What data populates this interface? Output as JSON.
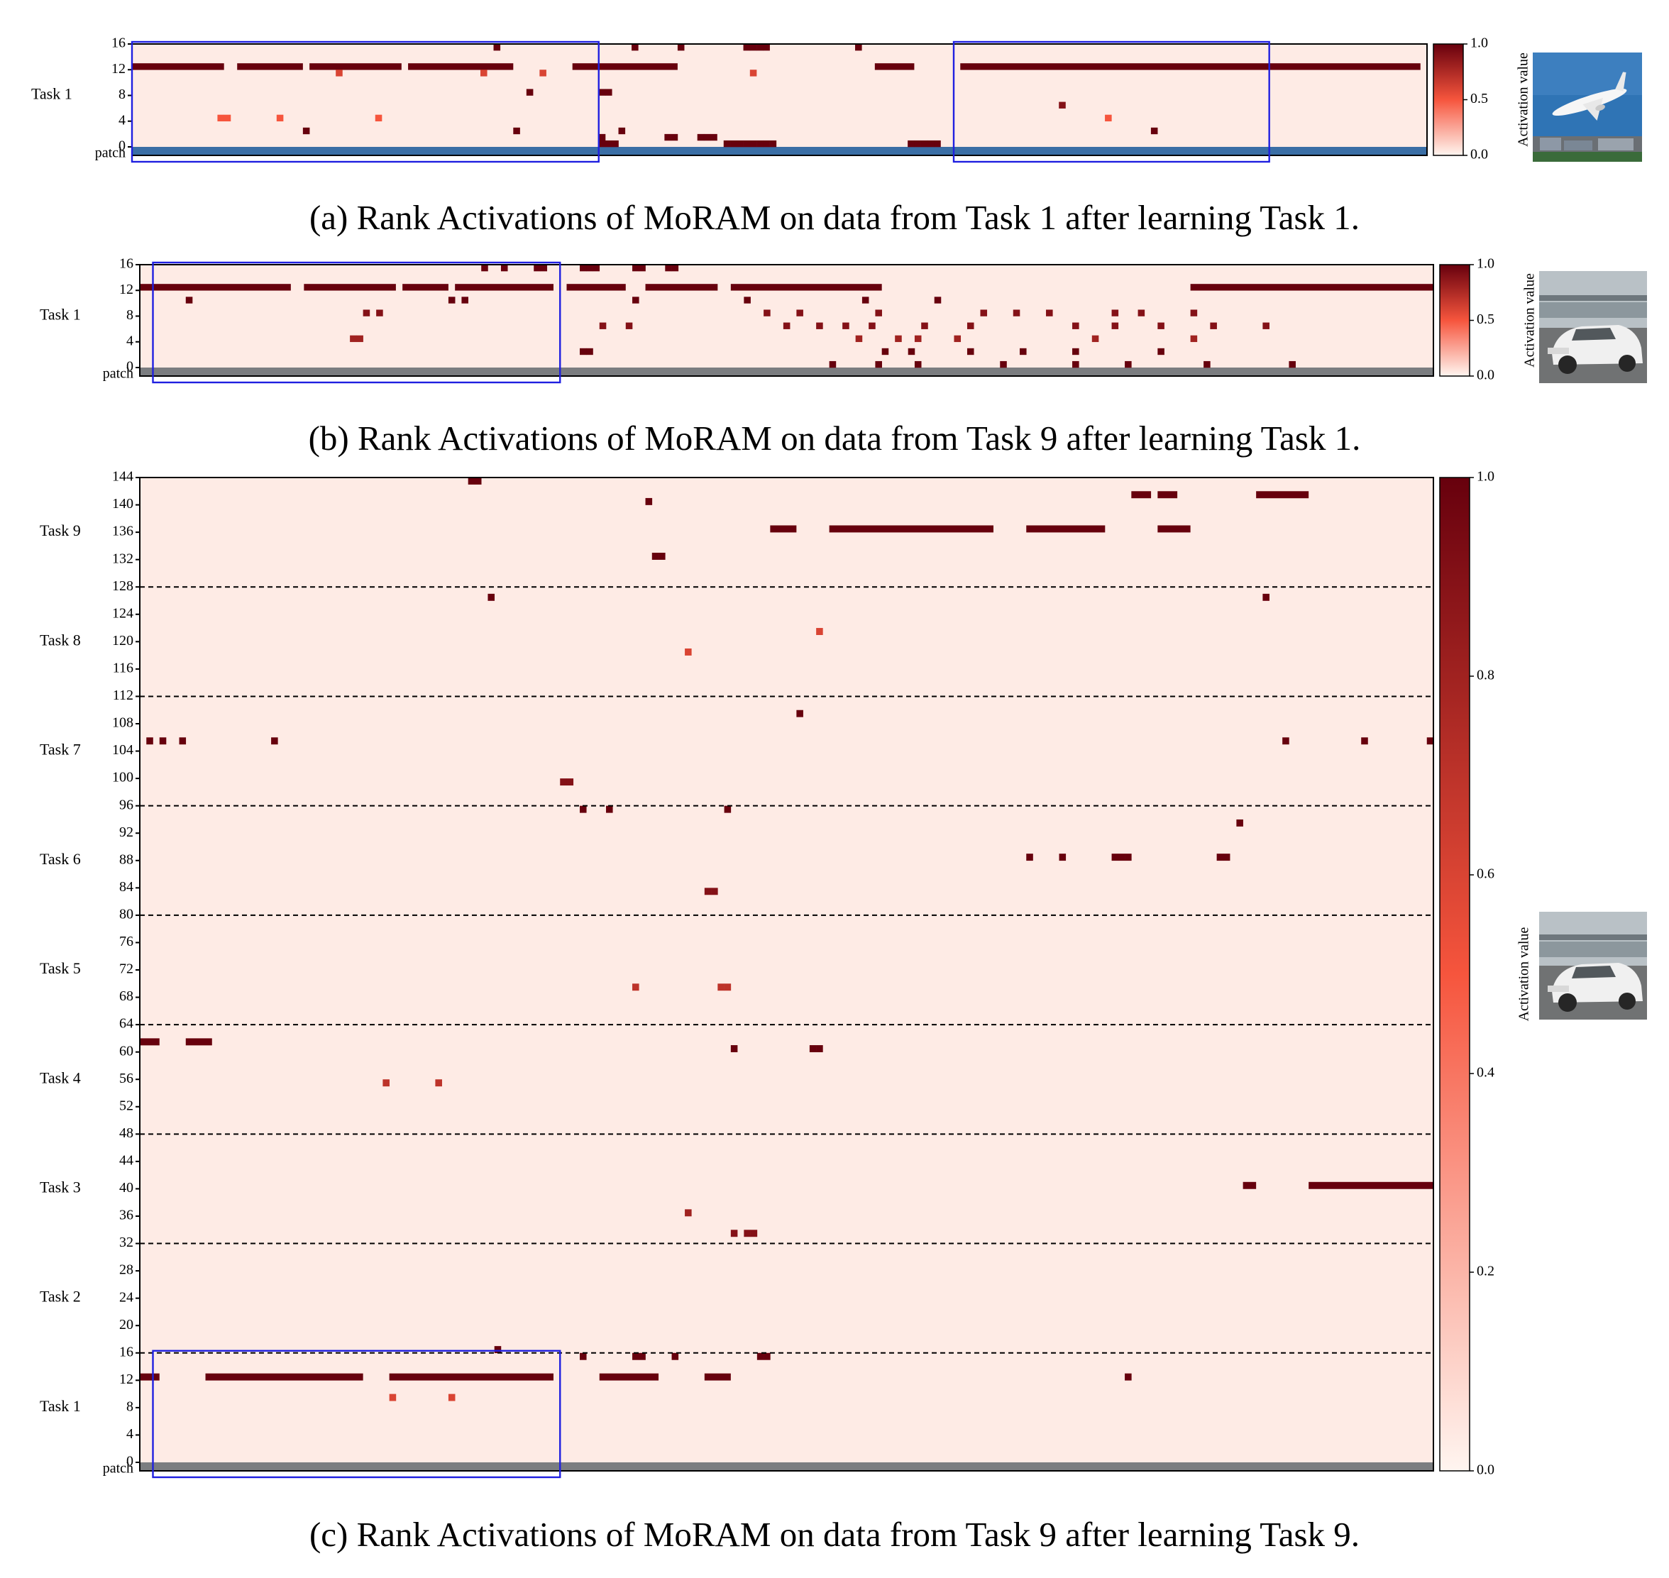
{
  "colors": {
    "cmap_low": "#fff5f0",
    "cmap_mid": "#f6553d",
    "cmap_high": "#67000d",
    "highlight_box": "#1f1fe0",
    "separator": "#000000"
  },
  "icons": {
    "panel_a_image": "airplane-photo",
    "panel_b_image": "white-car-photo",
    "panel_c_image": "white-car-photo"
  },
  "captions": {
    "a": "(a) Rank Activations of MoRAM on data from Task 1 after learning Task 1.",
    "b": "(b) Rank Activations of MoRAM on data from Task 9 after learning Task 1.",
    "c": "(c) Rank Activations of MoRAM on data from Task 9 after learning Task 9."
  },
  "colorbar": {
    "label": "Activation value",
    "ticks_small": [
      "1.0",
      "0.5",
      "0.0"
    ],
    "ticks_large": [
      "1.0",
      "0.8",
      "0.6",
      "0.4",
      "0.2",
      "0.0"
    ]
  },
  "chart_data": [
    {
      "type": "heatmap",
      "panel": "a",
      "title": "",
      "ylabel_groups": [
        "Task 1"
      ],
      "bottom_row_label": "patch",
      "yticks": [
        "16",
        "12",
        "8",
        "4",
        "0"
      ],
      "ylim": [
        0,
        16
      ],
      "n_patches": 197,
      "zlim": [
        0.0,
        1.0
      ],
      "strong_bands": [
        {
          "row": 12,
          "x": [
            [
              0,
              13
            ],
            [
              16,
              25
            ],
            [
              27,
              40
            ],
            [
              42,
              57
            ],
            [
              67,
              82
            ],
            [
              113,
              118
            ],
            [
              126,
              195
            ]
          ],
          "value": 1.0
        }
      ],
      "scattered": [
        {
          "row": 15,
          "x": [
            55,
            76,
            83,
            93,
            94,
            95,
            96,
            110
          ],
          "value": 1.0
        },
        {
          "row": 11,
          "x": [
            31,
            53,
            62,
            94
          ],
          "value": 0.6
        },
        {
          "row": 8,
          "x": [
            60,
            71,
            72
          ],
          "value": 1.0
        },
        {
          "row": 6,
          "x": [
            141
          ],
          "value": 0.9
        },
        {
          "row": 4,
          "x": [
            13,
            14,
            22,
            37,
            148
          ],
          "value": 0.5
        },
        {
          "row": 2,
          "x": [
            26,
            58,
            74,
            155
          ],
          "value": 1.0
        },
        {
          "row": 1,
          "x": [
            71,
            81,
            82,
            86,
            87,
            88
          ],
          "value": 1.0
        },
        {
          "row": 0,
          "x": [
            71,
            72,
            73,
            90,
            91,
            92,
            93,
            94,
            95,
            96,
            97,
            118,
            119,
            120,
            121,
            122
          ],
          "value": 1.0
        }
      ],
      "highlight_boxes": [
        {
          "x": [
            0,
            70
          ],
          "rows": [
            -2,
            16
          ]
        },
        {
          "x": [
            125,
            172
          ],
          "rows": [
            -2,
            16
          ]
        }
      ]
    },
    {
      "type": "heatmap",
      "panel": "b",
      "title": "",
      "ylabel_groups": [
        "Task 1"
      ],
      "bottom_row_label": "patch",
      "yticks": [
        "16",
        "12",
        "8",
        "4",
        "0"
      ],
      "ylim": [
        0,
        16
      ],
      "n_patches": 197,
      "zlim": [
        0.0,
        1.0
      ],
      "strong_bands": [
        {
          "row": 12,
          "x": [
            [
              0,
              22
            ],
            [
              25,
              38
            ],
            [
              40,
              46
            ],
            [
              48,
              62
            ],
            [
              65,
              73
            ],
            [
              77,
              87
            ],
            [
              90,
              112
            ],
            [
              160,
              196
            ]
          ],
          "value": 1.0
        }
      ],
      "scattered": [
        {
          "row": 15,
          "x": [
            52,
            55,
            60,
            61,
            67,
            68,
            69,
            75,
            76,
            80,
            81
          ],
          "value": 1.0
        },
        {
          "row": 10,
          "x": [
            7,
            47,
            49,
            75,
            92,
            110,
            121
          ],
          "value": 1.0
        },
        {
          "row": 8,
          "x": [
            34,
            36,
            95,
            100,
            112,
            128,
            133,
            138,
            148,
            152,
            160
          ],
          "value": 0.9
        },
        {
          "row": 6,
          "x": [
            70,
            74,
            98,
            103,
            107,
            111,
            119,
            126,
            142,
            148,
            155,
            163,
            171
          ],
          "value": 0.9
        },
        {
          "row": 4,
          "x": [
            32,
            33,
            109,
            115,
            118,
            124,
            145,
            160
          ],
          "value": 0.8
        },
        {
          "row": 2,
          "x": [
            67,
            68,
            113,
            117,
            126,
            134,
            142,
            155
          ],
          "value": 1.0
        },
        {
          "row": 0,
          "x": [
            105,
            112,
            118,
            131,
            142,
            150,
            162,
            175
          ],
          "value": 1.0
        }
      ],
      "highlight_boxes": [
        {
          "x": [
            2,
            63
          ],
          "rows": [
            -2,
            16
          ]
        }
      ]
    },
    {
      "type": "heatmap",
      "panel": "c",
      "title": "",
      "ylabel_groups": [
        "Task 9",
        "Task 8",
        "Task 7",
        "Task 6",
        "Task 5",
        "Task 4",
        "Task 3",
        "Task 2",
        "Task 1"
      ],
      "bottom_row_label": "patch",
      "yticks": [
        "144",
        "140",
        "136",
        "132",
        "128",
        "124",
        "120",
        "116",
        "112",
        "108",
        "104",
        "100",
        "96",
        "92",
        "88",
        "84",
        "80",
        "76",
        "72",
        "68",
        "64",
        "60",
        "56",
        "52",
        "48",
        "44",
        "40",
        "36",
        "32",
        "28",
        "24",
        "20",
        "16",
        "12",
        "8",
        "4",
        "0"
      ],
      "ylim": [
        0,
        144
      ],
      "task_boundaries": [
        16,
        32,
        48,
        64,
        80,
        96,
        112,
        128
      ],
      "n_patches": 197,
      "zlim": [
        0.0,
        1.0
      ],
      "strong_bands": [
        {
          "row": 12,
          "x": [
            [
              0,
              2
            ],
            [
              10,
              33
            ],
            [
              38,
              62
            ],
            [
              70,
              78
            ],
            [
              86,
              89
            ]
          ],
          "value": 1.0
        },
        {
          "row": 40,
          "x": [
            [
              168,
              169
            ],
            [
              178,
              196
            ]
          ],
          "value": 1.0
        },
        {
          "row": 61,
          "x": [
            [
              0,
              2
            ],
            [
              7,
              10
            ]
          ],
          "value": 1.0
        },
        {
          "row": 136,
          "x": [
            [
              96,
              99
            ],
            [
              105,
              129
            ],
            [
              135,
              146
            ],
            [
              155,
              159
            ]
          ],
          "value": 1.0
        },
        {
          "row": 141,
          "x": [
            [
              151,
              153
            ],
            [
              155,
              157
            ],
            [
              170,
              177
            ]
          ],
          "value": 1.0
        }
      ],
      "scattered": [
        {
          "row": 143,
          "x": [
            50,
            51
          ],
          "value": 1.0
        },
        {
          "row": 140,
          "x": [
            77
          ],
          "value": 1.0
        },
        {
          "row": 132,
          "x": [
            78,
            79
          ],
          "value": 1.0
        },
        {
          "row": 126,
          "x": [
            53,
            171
          ],
          "value": 1.0
        },
        {
          "row": 121,
          "x": [
            103
          ],
          "value": 0.6
        },
        {
          "row": 118,
          "x": [
            83
          ],
          "value": 0.6
        },
        {
          "row": 109,
          "x": [
            100
          ],
          "value": 1.0
        },
        {
          "row": 105,
          "x": [
            1,
            3,
            6,
            20,
            174,
            186,
            196
          ],
          "value": 1.0
        },
        {
          "row": 99,
          "x": [
            64,
            65
          ],
          "value": 0.9
        },
        {
          "row": 95,
          "x": [
            67,
            71,
            89
          ],
          "value": 1.0
        },
        {
          "row": 93,
          "x": [
            167
          ],
          "value": 1.0
        },
        {
          "row": 88,
          "x": [
            135,
            140,
            148,
            149,
            150,
            164,
            165
          ],
          "value": 1.0
        },
        {
          "row": 83,
          "x": [
            86,
            87
          ],
          "value": 0.9
        },
        {
          "row": 69,
          "x": [
            75,
            88,
            89
          ],
          "value": 0.7
        },
        {
          "row": 60,
          "x": [
            90,
            102,
            103
          ],
          "value": 1.0
        },
        {
          "row": 55,
          "x": [
            37,
            45
          ],
          "value": 0.7
        },
        {
          "row": 36,
          "x": [
            83
          ],
          "value": 0.8
        },
        {
          "row": 33,
          "x": [
            90,
            92,
            93
          ],
          "value": 0.9
        },
        {
          "row": 16,
          "x": [
            54
          ],
          "value": 1.0
        },
        {
          "row": 15,
          "x": [
            67,
            75,
            76,
            81,
            94,
            95
          ],
          "value": 1.0
        },
        {
          "row": 12,
          "x": [
            150
          ],
          "value": 1.0
        },
        {
          "row": 9,
          "x": [
            38,
            47
          ],
          "value": 0.6
        }
      ],
      "highlight_boxes": [
        {
          "x": [
            2,
            63
          ],
          "rows": [
            -2,
            16
          ]
        }
      ]
    }
  ]
}
